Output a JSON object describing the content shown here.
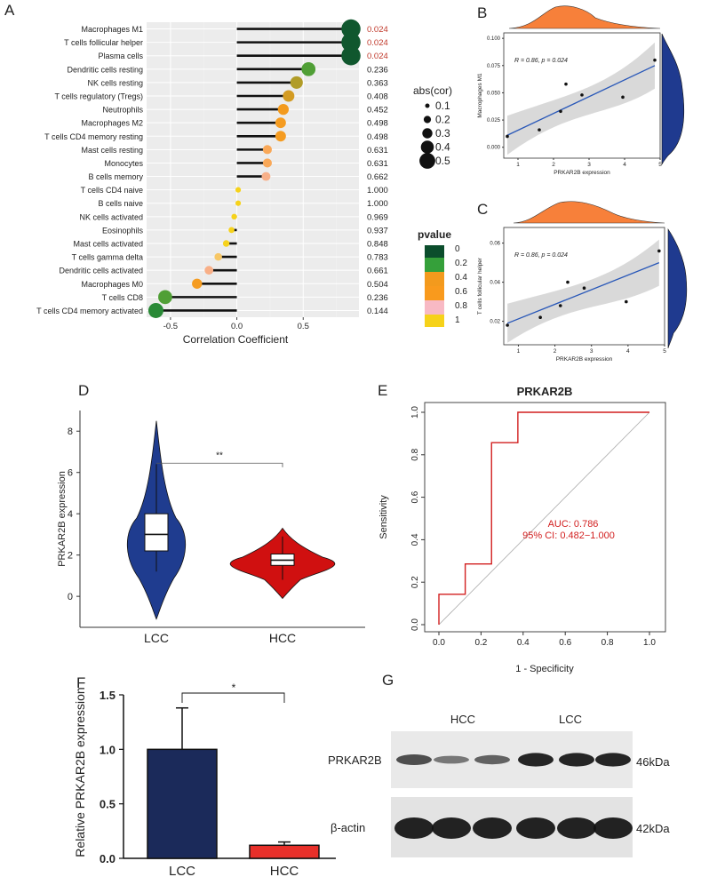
{
  "panels": {
    "A": "A",
    "B": "B",
    "C": "C",
    "D": "D",
    "E": "E",
    "F": "F",
    "G": "G"
  },
  "chart_data": [
    {
      "panel": "A",
      "type": "lollipop",
      "xlabel": "Correlation Coefficient",
      "xticks": [
        "-0.5",
        "0.0",
        "0.5"
      ],
      "xlim": [
        -0.68,
        0.92
      ],
      "categories": [
        "Macrophages M1",
        "T cells follicular helper",
        "Plasma cells",
        "Dendritic cells resting",
        "NK cells resting",
        "T cells regulatory (Tregs)",
        "Neutrophils",
        "Macrophages M2",
        "T cells CD4 memory resting",
        "Mast cells resting",
        "Monocytes",
        "B cells memory",
        "T cells CD4 naive",
        "B cells naive",
        "NK cells activated",
        "Eosinophils",
        "Mast cells activated",
        "T cells gamma delta",
        "Dendritic cells activated",
        "Macrophages M0",
        "T cells CD8",
        "T cells CD4 memory activated"
      ],
      "cor": [
        0.86,
        0.86,
        0.86,
        0.54,
        0.45,
        0.39,
        0.35,
        0.33,
        0.33,
        0.23,
        0.23,
        0.22,
        0.01,
        0.01,
        -0.02,
        -0.04,
        -0.08,
        -0.14,
        -0.21,
        -0.3,
        -0.54,
        -0.61
      ],
      "pvalue": [
        0.024,
        0.024,
        0.024,
        0.236,
        0.363,
        0.408,
        0.452,
        0.498,
        0.498,
        0.631,
        0.631,
        0.662,
        1.0,
        1.0,
        0.969,
        0.937,
        0.848,
        0.783,
        0.661,
        0.504,
        0.236,
        0.144
      ],
      "pvalue_labels": [
        "0.024",
        "0.024",
        "0.024",
        "0.236",
        "0.363",
        "0.408",
        "0.452",
        "0.498",
        "0.498",
        "0.631",
        "0.631",
        "0.662",
        "1.000",
        "1.000",
        "0.969",
        "0.937",
        "0.848",
        "0.783",
        "0.661",
        "0.504",
        "0.236",
        "0.144"
      ],
      "size_legend": {
        "title": "abs(cor)",
        "labels": [
          "0.1",
          "0.2",
          "0.3",
          "0.4",
          "0.5"
        ]
      },
      "color_legend": {
        "title": "pvalue",
        "labels": [
          "0",
          "0.2",
          "0.4",
          "0.6",
          "0.8",
          "1"
        ],
        "colors": [
          "#0b4d2c",
          "#35a03a",
          "#f39a1d",
          "#f99a1d",
          "#f8b9c4",
          "#f6d21a"
        ]
      },
      "significant_color": "#c0392b"
    },
    {
      "panel": "B",
      "type": "scatter",
      "xlabel": "PRKAR2B expression",
      "ylabel": "Macrophages M1",
      "annotation": "R = 0.86, p = 0.024",
      "xticks": [
        "1",
        "2",
        "3",
        "4",
        "5"
      ],
      "yticks": [
        "0.000",
        "0.025",
        "0.050",
        "0.075",
        "0.100"
      ],
      "xlim": [
        0.6,
        5.0
      ],
      "ylim": [
        -0.01,
        0.105
      ],
      "x": [
        0.7,
        1.6,
        2.2,
        2.35,
        2.8,
        3.95,
        4.85
      ],
      "y": [
        0.01,
        0.016,
        0.033,
        0.058,
        0.048,
        0.046,
        0.08
      ],
      "fit": [
        [
          0.7,
          0.011
        ],
        [
          4.85,
          0.075
        ]
      ]
    },
    {
      "panel": "C",
      "type": "scatter",
      "xlabel": "PRKAR2B expression",
      "ylabel": "T cells follicular helper",
      "annotation": "R = 0.86, p = 0.024",
      "xticks": [
        "1",
        "2",
        "3",
        "4",
        "5"
      ],
      "yticks": [
        "0.02",
        "0.04",
        "0.06"
      ],
      "xlim": [
        0.6,
        5.0
      ],
      "ylim": [
        0.008,
        0.068
      ],
      "x": [
        0.7,
        1.6,
        2.15,
        2.35,
        2.8,
        3.95,
        4.85
      ],
      "y": [
        0.018,
        0.022,
        0.028,
        0.04,
        0.037,
        0.03,
        0.056
      ],
      "fit": [
        [
          0.7,
          0.019
        ],
        [
          4.85,
          0.05
        ]
      ]
    },
    {
      "panel": "D",
      "type": "violin",
      "ylabel": "PRKAR2B expression",
      "categories": [
        "LCC",
        "HCC"
      ],
      "yticks": [
        "0",
        "2",
        "4",
        "6",
        "8"
      ],
      "ylim": [
        -1.5,
        9
      ],
      "significance": "**",
      "colors": [
        "#1f3c8f",
        "#d01010"
      ]
    },
    {
      "panel": "E",
      "type": "roc",
      "title": "PRKAR2B",
      "xlabel": "1 - Specificity",
      "ylabel": "Sensitivity",
      "xticks": [
        "0.0",
        "0.2",
        "0.4",
        "0.6",
        "0.8",
        "1.0"
      ],
      "yticks": [
        "0.0",
        "0.2",
        "0.4",
        "0.6",
        "0.8",
        "1.0"
      ],
      "auc": "AUC: 0.786",
      "ci": "95% CI: 0.482−1.000",
      "roc_x": [
        0.0,
        0.0,
        0.125,
        0.125,
        0.25,
        0.25,
        0.375,
        0.375,
        1.0
      ],
      "roc_y": [
        0.0,
        0.143,
        0.143,
        0.286,
        0.286,
        0.857,
        0.857,
        1.0,
        1.0
      ]
    },
    {
      "panel": "F",
      "type": "bar",
      "ylabel": "Relative PRKAR2B expression",
      "categories": [
        "LCC",
        "HCC"
      ],
      "values": [
        1.0,
        0.12
      ],
      "errors": [
        0.38,
        0.03
      ],
      "yticks": [
        "0.0",
        "0.5",
        "1.0",
        "1.5"
      ],
      "ylim": [
        0,
        1.5
      ],
      "significance": "*",
      "colors": [
        "#1b2a5a",
        "#e8302a"
      ]
    }
  ],
  "blot": {
    "groups": [
      "HCC",
      "LCC"
    ],
    "rows": [
      {
        "label": "PRKAR2B",
        "size": "46kDa"
      },
      {
        "label": "β-actin",
        "size": "42kDa"
      }
    ]
  }
}
